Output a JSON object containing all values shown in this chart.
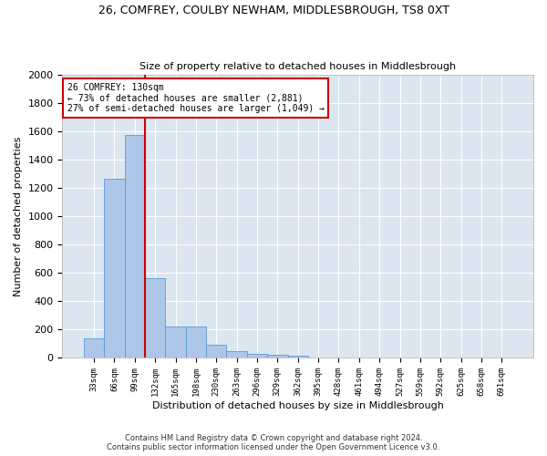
{
  "title": "26, COMFREY, COULBY NEWHAM, MIDDLESBROUGH, TS8 0XT",
  "subtitle": "Size of property relative to detached houses in Middlesbrough",
  "xlabel": "Distribution of detached houses by size in Middlesbrough",
  "ylabel": "Number of detached properties",
  "footer_line1": "Contains HM Land Registry data © Crown copyright and database right 2024.",
  "footer_line2": "Contains public sector information licensed under the Open Government Licence v3.0.",
  "annotation_line1": "26 COMFREY: 130sqm",
  "annotation_line2": "← 73% of detached houses are smaller (2,881)",
  "annotation_line3": "27% of semi-detached houses are larger (1,049) →",
  "bar_color": "#aec6e8",
  "bar_edge_color": "#5b9bd5",
  "vline_color": "#cc0000",
  "annotation_box_color": "#cc0000",
  "background_color": "#ffffff",
  "axes_bg_color": "#dce6f0",
  "grid_color": "#ffffff",
  "categories": [
    "33sqm",
    "66sqm",
    "99sqm",
    "132sqm",
    "165sqm",
    "198sqm",
    "230sqm",
    "263sqm",
    "296sqm",
    "329sqm",
    "362sqm",
    "395sqm",
    "428sqm",
    "461sqm",
    "494sqm",
    "527sqm",
    "559sqm",
    "592sqm",
    "625sqm",
    "658sqm",
    "691sqm"
  ],
  "values": [
    140,
    1265,
    1570,
    560,
    220,
    220,
    95,
    50,
    30,
    20,
    15,
    0,
    0,
    0,
    0,
    0,
    0,
    0,
    0,
    0,
    0
  ],
  "ylim": [
    0,
    2000
  ],
  "yticks": [
    0,
    200,
    400,
    600,
    800,
    1000,
    1200,
    1400,
    1600,
    1800,
    2000
  ],
  "vline_x_idx": 2.5,
  "figsize": [
    6.0,
    5.0
  ],
  "dpi": 100
}
